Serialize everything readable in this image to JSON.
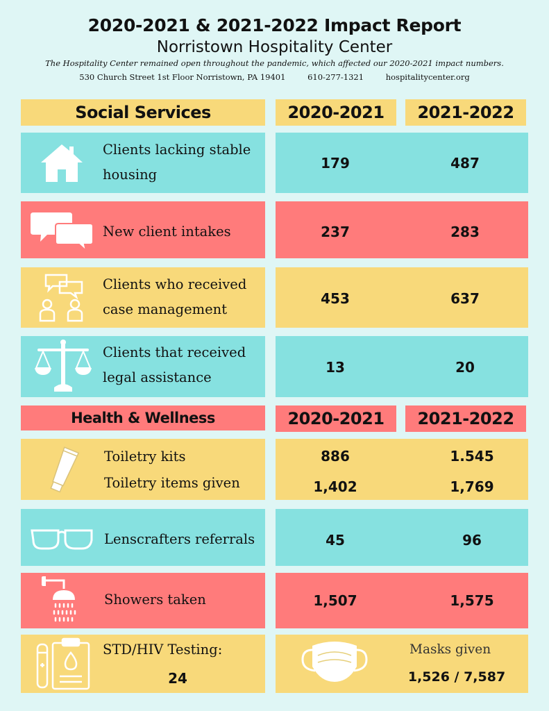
{
  "header": {
    "title": "2020-2021 & 2021-2022 Impact Report",
    "subtitle": "Norristown Hospitality Center",
    "note": "The Hospitality Center remained open throughout the pandemic, which affected our 2020-2021 impact numbers.",
    "address": "530 Church Street 1st Floor Norristown, PA 19401",
    "phone": "610-277-1321",
    "website": "hospitalitycenter.org"
  },
  "social_services": {
    "heading": "Social Services",
    "col1": "2020-2021",
    "col2": "2021-2022",
    "rows": [
      {
        "icon": "house-icon",
        "label_line1": "Clients lacking stable",
        "label_line2": "housing",
        "v1": "179",
        "v2": "487"
      },
      {
        "icon": "speech-bubbles-icon",
        "label_line1": "New client intakes",
        "v1": "237",
        "v2": "283"
      },
      {
        "icon": "conversation-people-icon",
        "label_line1": "Clients who received",
        "label_line2": "case management",
        "v1": "453",
        "v2": "637"
      },
      {
        "icon": "scales-of-justice-icon",
        "label_line1": "Clients that received",
        "label_line2": "legal assistance",
        "v1": "13",
        "v2": "20"
      }
    ]
  },
  "health_wellness": {
    "heading": "Health & Wellness",
    "col1": "2020-2021",
    "col2": "2021-2022",
    "toiletry": {
      "icon": "toiletry-tube-icon",
      "label1": "Toiletry kits",
      "label2": "Toiletry items given",
      "kits_v1": "886",
      "kits_v2": "1.545",
      "items_v1": "1,402",
      "items_v2": "1,769"
    },
    "lenscrafters": {
      "icon": "eyeglasses-icon",
      "label": "Lenscrafters referrals",
      "v1": "45",
      "v2": "96"
    },
    "showers": {
      "icon": "shower-icon",
      "label": "Showers taken",
      "v1": "1,507",
      "v2": "1,575"
    },
    "testing": {
      "icon": "test-clipboard-icon",
      "label": "STD/HIV Testing:",
      "value": "24"
    },
    "masks": {
      "icon": "face-mask-icon",
      "label": "Masks given",
      "value": "1,526 / 7,587"
    }
  },
  "colors": {
    "background": "#dff6f5",
    "teal": "#86e1e0",
    "coral": "#ff7b7b",
    "yellow": "#f8d97a"
  }
}
